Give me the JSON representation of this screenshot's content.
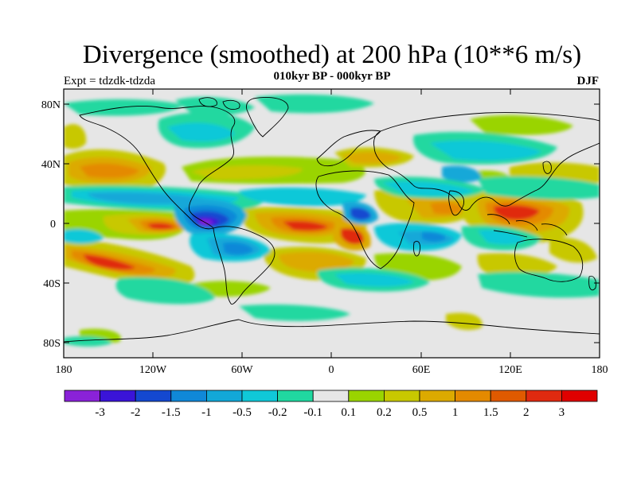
{
  "title": "Divergence (smoothed) at 200 hPa (10**6 m/s)",
  "subtitle": "010kyr BP - 000kyr BP",
  "expt_label": "Expt = tdzdk-tdzda",
  "season": "DJF",
  "lat_labels": [
    "80N",
    "40N",
    "0",
    "40S",
    "80S"
  ],
  "lon_labels": [
    "180",
    "120W",
    "60W",
    "0",
    "60E",
    "120E",
    "180"
  ],
  "colorbar": {
    "tick_labels": [
      "-3",
      "-2",
      "-1.5",
      "-1",
      "-0.5",
      "-0.2",
      "-0.1",
      "0.1",
      "0.2",
      "0.5",
      "1",
      "1.5",
      "2",
      "3"
    ],
    "colors": [
      "#8a22d8",
      "#3a14d8",
      "#1448d0",
      "#1088d8",
      "#12a8d8",
      "#10c8d8",
      "#20d8a0",
      "#e6e6e6",
      "#9ad400",
      "#c8c800",
      "#dcaa00",
      "#e48a00",
      "#e05a00",
      "#e02a10",
      "#e00000"
    ]
  },
  "colors": {
    "land_outline": "#000000",
    "background": "#e6e6e6"
  }
}
